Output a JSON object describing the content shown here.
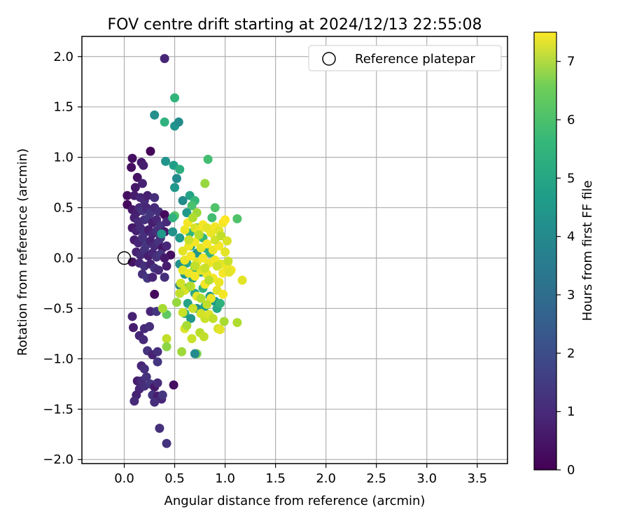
{
  "chart_data": {
    "type": "scatter",
    "title": "FOV centre drift starting at 2024/12/13 22:55:08",
    "xlabel": "Angular distance from reference (arcmin)",
    "ylabel": "Rotation from reference (arcmin)",
    "xlim": [
      -0.42,
      3.8
    ],
    "ylim": [
      -2.04,
      2.2
    ],
    "x_ticks": [
      0.0,
      0.5,
      1.0,
      1.5,
      2.0,
      2.5,
      3.0,
      3.5
    ],
    "y_ticks": [
      -2.0,
      -1.5,
      -1.0,
      -0.5,
      0.0,
      0.5,
      1.0,
      1.5,
      2.0
    ],
    "x_tick_labels": [
      "0.0",
      "0.5",
      "1.0",
      "1.5",
      "2.0",
      "2.5",
      "3.0",
      "3.5"
    ],
    "y_tick_labels": [
      "−2.0",
      "−1.5",
      "−1.0",
      "−0.5",
      "0.0",
      "0.5",
      "1.0",
      "1.5",
      "2.0"
    ],
    "grid": true,
    "legend": {
      "position": "top-right",
      "entries": [
        "Reference platepar"
      ]
    },
    "colorbar": {
      "label": "Hours from first FF file",
      "range": [
        0,
        7.5
      ],
      "ticks": [
        0,
        1,
        2,
        3,
        4,
        5,
        6,
        7
      ],
      "tick_labels": [
        "0",
        "1",
        "2",
        "3",
        "4",
        "5",
        "6",
        "7"
      ],
      "colormap": "viridis"
    },
    "reference_point": {
      "x": 0.0,
      "y": 0.0,
      "label": "Reference platepar"
    },
    "points": [
      [
        0.4,
        1.98,
        0.8
      ],
      [
        0.26,
        1.06,
        0.1
      ],
      [
        0.08,
        0.99,
        0.3
      ],
      [
        0.17,
        0.95,
        0.5
      ],
      [
        0.19,
        0.92,
        0.6
      ],
      [
        0.07,
        0.9,
        0.3
      ],
      [
        0.13,
        0.8,
        0.4
      ],
      [
        0.18,
        0.74,
        0.7
      ],
      [
        0.11,
        0.7,
        0.5
      ],
      [
        0.03,
        0.62,
        0.3
      ],
      [
        0.1,
        0.62,
        0.6
      ],
      [
        0.16,
        0.6,
        0.8
      ],
      [
        0.2,
        0.57,
        0.9
      ],
      [
        0.23,
        0.62,
        0.7
      ],
      [
        0.3,
        0.6,
        1.0
      ],
      [
        0.03,
        0.53,
        0.2
      ],
      [
        0.08,
        0.48,
        0.5
      ],
      [
        0.12,
        0.45,
        0.6
      ],
      [
        0.15,
        0.5,
        0.9
      ],
      [
        0.18,
        0.47,
        1.1
      ],
      [
        0.22,
        0.5,
        0.8
      ],
      [
        0.26,
        0.45,
        1.2
      ],
      [
        0.3,
        0.5,
        0.9
      ],
      [
        0.34,
        0.46,
        1.0
      ],
      [
        0.1,
        0.4,
        0.7
      ],
      [
        0.14,
        0.36,
        0.9
      ],
      [
        0.2,
        0.38,
        1.0
      ],
      [
        0.24,
        0.4,
        1.2
      ],
      [
        0.28,
        0.35,
        0.6
      ],
      [
        0.32,
        0.38,
        0.8
      ],
      [
        0.36,
        0.32,
        1.1
      ],
      [
        0.4,
        0.43,
        0.2
      ],
      [
        0.42,
        0.36,
        0.9
      ],
      [
        0.08,
        0.3,
        0.5
      ],
      [
        0.12,
        0.27,
        0.7
      ],
      [
        0.16,
        0.3,
        0.9
      ],
      [
        0.2,
        0.25,
        1.1
      ],
      [
        0.24,
        0.28,
        0.6
      ],
      [
        0.28,
        0.24,
        0.8
      ],
      [
        0.32,
        0.27,
        1.0
      ],
      [
        0.36,
        0.2,
        1.2
      ],
      [
        0.4,
        0.26,
        0.5
      ],
      [
        0.1,
        0.18,
        0.6
      ],
      [
        0.14,
        0.15,
        0.8
      ],
      [
        0.18,
        0.2,
        1.0
      ],
      [
        0.22,
        0.13,
        1.2
      ],
      [
        0.26,
        0.17,
        0.7
      ],
      [
        0.3,
        0.12,
        0.9
      ],
      [
        0.34,
        0.16,
        1.1
      ],
      [
        0.38,
        0.1,
        0.4
      ],
      [
        0.42,
        0.12,
        0.8
      ],
      [
        0.46,
        0.03,
        0.3
      ],
      [
        0.12,
        0.06,
        0.7
      ],
      [
        0.16,
        0.03,
        0.9
      ],
      [
        0.2,
        0.08,
        1.1
      ],
      [
        0.24,
        0.02,
        0.6
      ],
      [
        0.28,
        0.05,
        0.8
      ],
      [
        0.32,
        0.01,
        1.0
      ],
      [
        0.36,
        0.04,
        1.2
      ],
      [
        0.4,
        0.0,
        0.5
      ],
      [
        0.08,
        -0.04,
        0.4
      ],
      [
        0.15,
        -0.05,
        0.8
      ],
      [
        0.2,
        -0.08,
        1.0
      ],
      [
        0.26,
        -0.06,
        0.7
      ],
      [
        0.3,
        -0.1,
        1.1
      ],
      [
        0.34,
        -0.12,
        0.9
      ],
      [
        0.42,
        -0.08,
        0.6
      ],
      [
        0.18,
        -0.16,
        1.0
      ],
      [
        0.23,
        -0.2,
        1.2
      ],
      [
        0.28,
        -0.19,
        0.8
      ],
      [
        0.4,
        -0.19,
        1.0
      ],
      [
        0.3,
        -0.36,
        0.2
      ],
      [
        0.08,
        -0.58,
        0.7
      ],
      [
        0.26,
        -0.53,
        0.8
      ],
      [
        0.32,
        -0.53,
        1.2
      ],
      [
        0.09,
        -0.69,
        0.6
      ],
      [
        0.2,
        -0.7,
        0.9
      ],
      [
        0.25,
        -0.68,
        1.0
      ],
      [
        0.15,
        -0.77,
        0.8
      ],
      [
        0.19,
        -0.81,
        0.9
      ],
      [
        0.23,
        -0.92,
        1.1
      ],
      [
        0.28,
        -0.96,
        0.7
      ],
      [
        0.33,
        -0.93,
        1.0
      ],
      [
        0.33,
        -1.03,
        1.2
      ],
      [
        0.17,
        -1.07,
        0.8
      ],
      [
        0.2,
        -1.1,
        1.0
      ],
      [
        0.13,
        -1.22,
        0.6
      ],
      [
        0.17,
        -1.22,
        0.9
      ],
      [
        0.22,
        -1.18,
        1.1
      ],
      [
        0.15,
        -1.3,
        0.8
      ],
      [
        0.2,
        -1.27,
        1.0
      ],
      [
        0.26,
        -1.25,
        1.2
      ],
      [
        0.3,
        -1.28,
        0.5
      ],
      [
        0.33,
        -1.24,
        0.9
      ],
      [
        0.49,
        -1.26,
        0.3
      ],
      [
        0.12,
        -1.36,
        0.7
      ],
      [
        0.1,
        -1.42,
        0.9
      ],
      [
        0.28,
        -1.36,
        1.1
      ],
      [
        0.33,
        -1.37,
        0.6
      ],
      [
        0.37,
        -1.4,
        0.8
      ],
      [
        0.3,
        -1.43,
        1.0
      ],
      [
        0.38,
        -1.36,
        1.2
      ],
      [
        0.35,
        -1.69,
        1.0
      ],
      [
        0.42,
        -1.84,
        1.1
      ],
      [
        0.5,
        1.59,
        4.9
      ],
      [
        0.3,
        1.42,
        3.7
      ],
      [
        0.4,
        1.35,
        4.8
      ],
      [
        0.5,
        1.31,
        3.9
      ],
      [
        0.54,
        1.35,
        3.6
      ],
      [
        0.41,
        0.96,
        3.9
      ],
      [
        0.49,
        0.92,
        4.2
      ],
      [
        0.55,
        0.88,
        4.7
      ],
      [
        0.52,
        0.79,
        3.6
      ],
      [
        0.5,
        0.7,
        4.0
      ],
      [
        0.83,
        0.98,
        5.2
      ],
      [
        0.65,
        0.62,
        4.3
      ],
      [
        0.7,
        0.57,
        5.0
      ],
      [
        0.67,
        0.52,
        5.3
      ],
      [
        0.62,
        0.45,
        4.0
      ],
      [
        0.58,
        0.57,
        3.6
      ],
      [
        0.5,
        0.42,
        5.5
      ],
      [
        0.48,
        0.4,
        4.8
      ],
      [
        0.37,
        0.24,
        4.0
      ],
      [
        0.48,
        0.26,
        3.8
      ],
      [
        0.55,
        0.2,
        4.0
      ],
      [
        0.65,
        0.25,
        5.0
      ],
      [
        0.72,
        0.3,
        4.6
      ],
      [
        0.66,
        0.12,
        4.2
      ],
      [
        0.78,
        0.2,
        5.0
      ],
      [
        0.8,
        0.1,
        4.4
      ],
      [
        0.72,
        0.05,
        3.9
      ],
      [
        0.85,
        0.05,
        4.8
      ],
      [
        0.55,
        -0.06,
        3.8
      ],
      [
        0.62,
        -0.05,
        4.4
      ],
      [
        0.7,
        -0.1,
        4.8
      ],
      [
        0.6,
        -0.16,
        4.0
      ],
      [
        0.68,
        -0.2,
        4.2
      ],
      [
        0.76,
        -0.14,
        4.6
      ],
      [
        0.55,
        -0.27,
        3.6
      ],
      [
        0.62,
        -0.3,
        4.1
      ],
      [
        0.7,
        -0.35,
        4.5
      ],
      [
        0.78,
        -0.3,
        4.9
      ],
      [
        0.85,
        -0.38,
        4.0
      ],
      [
        0.63,
        -0.45,
        4.3
      ],
      [
        0.72,
        -0.5,
        3.8
      ],
      [
        0.6,
        -0.55,
        4.6
      ],
      [
        0.8,
        -0.48,
        4.2
      ],
      [
        0.9,
        -0.43,
        4.0
      ],
      [
        0.92,
        -0.5,
        4.5
      ],
      [
        0.95,
        -0.45,
        4.8
      ],
      [
        0.42,
        -0.56,
        5.6
      ],
      [
        0.66,
        -0.6,
        4.0
      ],
      [
        0.9,
        0.5,
        5.4
      ],
      [
        0.87,
        0.4,
        5.2
      ],
      [
        0.8,
        0.74,
        6.3
      ],
      [
        0.72,
        0.45,
        6.4
      ],
      [
        1.12,
        0.39,
        5.4
      ],
      [
        0.38,
        -0.5,
        6.5
      ],
      [
        0.52,
        -0.44,
        6.3
      ],
      [
        0.42,
        -0.8,
        6.8
      ],
      [
        0.42,
        -0.88,
        6.2
      ],
      [
        0.57,
        -0.93,
        6.4
      ],
      [
        0.72,
        -0.95,
        6.0
      ],
      [
        0.7,
        -0.95,
        3.6
      ],
      [
        0.75,
        -0.74,
        6.7
      ],
      [
        0.79,
        -0.78,
        6.8
      ],
      [
        0.67,
        -0.8,
        6.9
      ],
      [
        0.6,
        -0.7,
        7.1
      ],
      [
        0.62,
        -0.67,
        6.5
      ],
      [
        0.8,
        -0.6,
        6.9
      ],
      [
        0.93,
        -0.7,
        7.0
      ],
      [
        0.99,
        -0.63,
        6.5
      ],
      [
        1.12,
        -0.64,
        6.6
      ],
      [
        0.95,
        -0.71,
        7.2
      ],
      [
        0.6,
        0.28,
        7.3
      ],
      [
        0.63,
        0.35,
        7.4
      ],
      [
        0.7,
        0.3,
        7.1
      ],
      [
        0.74,
        0.26,
        7.3
      ],
      [
        0.78,
        0.33,
        7.4
      ],
      [
        0.82,
        0.3,
        7.2
      ],
      [
        0.86,
        0.25,
        7.3
      ],
      [
        0.9,
        0.31,
        7.4
      ],
      [
        0.94,
        0.27,
        7.2
      ],
      [
        0.98,
        0.35,
        7.4
      ],
      [
        1.0,
        0.38,
        7.5
      ],
      [
        0.58,
        0.07,
        7.2
      ],
      [
        0.64,
        0.12,
        7.3
      ],
      [
        0.7,
        0.16,
        7.4
      ],
      [
        0.76,
        0.1,
        7.2
      ],
      [
        0.82,
        0.14,
        7.4
      ],
      [
        0.88,
        0.08,
        7.3
      ],
      [
        0.94,
        0.12,
        7.4
      ],
      [
        1.0,
        0.06,
        7.2
      ],
      [
        0.6,
        -0.02,
        7.3
      ],
      [
        0.66,
        0.02,
        7.4
      ],
      [
        0.72,
        -0.04,
        7.2
      ],
      [
        0.78,
        0.0,
        7.4
      ],
      [
        0.84,
        -0.05,
        7.3
      ],
      [
        0.9,
        -0.02,
        7.4
      ],
      [
        0.96,
        -0.06,
        7.2
      ],
      [
        1.02,
        -0.08,
        7.3
      ],
      [
        1.06,
        -0.12,
        7.4
      ],
      [
        0.58,
        -0.12,
        7.2
      ],
      [
        0.64,
        -0.15,
        7.3
      ],
      [
        0.7,
        -0.18,
        7.4
      ],
      [
        0.76,
        -0.12,
        7.2
      ],
      [
        0.82,
        -0.16,
        7.3
      ],
      [
        0.88,
        -0.2,
        7.4
      ],
      [
        0.94,
        -0.24,
        7.3
      ],
      [
        0.98,
        -0.15,
        7.4
      ],
      [
        1.04,
        -0.14,
        7.2
      ],
      [
        1.17,
        -0.22,
        7.2
      ],
      [
        0.6,
        -0.32,
        7.1
      ],
      [
        0.66,
        -0.28,
        7.3
      ],
      [
        0.72,
        -0.38,
        7.2
      ],
      [
        0.8,
        -0.26,
        7.4
      ],
      [
        0.86,
        -0.4,
        7.3
      ],
      [
        0.92,
        -0.32,
        7.2
      ],
      [
        0.98,
        -0.36,
        7.4
      ],
      [
        0.56,
        -0.25,
        7.0
      ],
      [
        0.68,
        -0.5,
        6.9
      ],
      [
        0.76,
        -0.55,
        7.0
      ],
      [
        0.84,
        -0.56,
        7.1
      ],
      [
        0.88,
        -0.6,
        6.8
      ],
      [
        0.55,
        -0.35,
        6.8
      ],
      [
        0.58,
        -0.54,
        6.9
      ],
      [
        0.65,
        -0.28,
        6.6
      ],
      [
        0.84,
        -0.22,
        6.7
      ],
      [
        0.76,
        -0.4,
        6.6
      ],
      [
        0.82,
        -0.46,
        6.8
      ],
      [
        0.68,
        0.4,
        6.6
      ],
      [
        0.74,
        0.23,
        6.7
      ],
      [
        0.64,
        0.18,
        6.9
      ],
      [
        0.9,
        0.18,
        7.0
      ],
      [
        0.96,
        0.22,
        6.8
      ],
      [
        1.02,
        0.17,
        7.1
      ],
      [
        0.7,
        -0.08,
        6.8
      ],
      [
        0.8,
        -0.1,
        6.9
      ],
      [
        0.92,
        -0.08,
        7.0
      ],
      [
        1.03,
        -0.03,
        6.9
      ]
    ]
  }
}
